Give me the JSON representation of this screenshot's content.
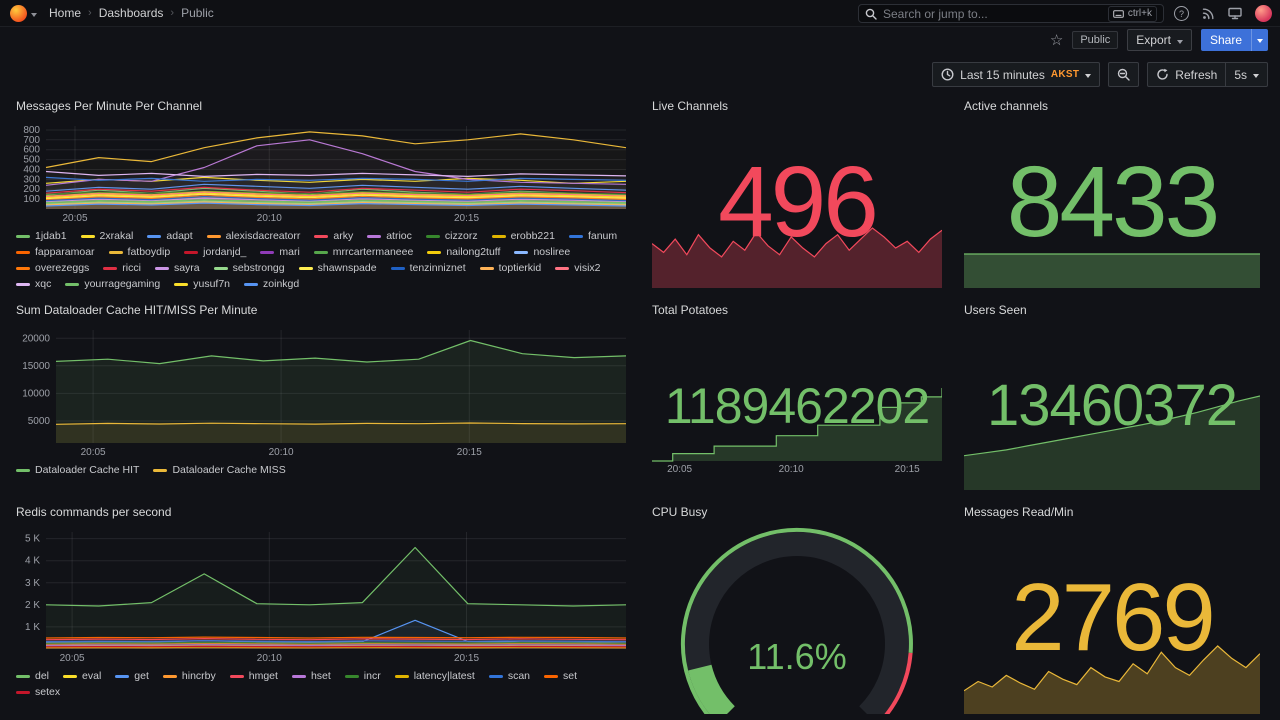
{
  "topnav": {
    "breadcrumbs": [
      "Home",
      "Dashboards",
      "Public"
    ],
    "search_placeholder": "Search or jump to...",
    "search_shortcut": "ctrl+k"
  },
  "subnav": {
    "tag": "Public",
    "export_label": "Export",
    "share_label": "Share"
  },
  "toolbar": {
    "time_range": "Last 15 minutes",
    "timezone": "AKST",
    "refresh_label": "Refresh",
    "interval": "5s"
  },
  "panels": {
    "messages": {
      "title": "Messages Per Minute Per Channel"
    },
    "live_channels": {
      "title": "Live Channels",
      "value": "496"
    },
    "active_channels": {
      "title": "Active channels",
      "value": "8433"
    },
    "dataloader": {
      "title": "Sum Dataloader Cache HIT/MISS Per Minute"
    },
    "total_potatoes": {
      "title": "Total Potatoes",
      "value": "1189462202"
    },
    "users_seen": {
      "title": "Users Seen",
      "value": "13460372"
    },
    "redis": {
      "title": "Redis commands per second"
    },
    "cpu": {
      "title": "CPU Busy"
    },
    "messages_read": {
      "title": "Messages Read/Min",
      "value": "2769"
    }
  },
  "chart_data": {
    "messages": {
      "type": "line",
      "ml": 30,
      "fo": 0.03,
      "ylim": [
        0,
        840
      ],
      "yticks": [
        {
          "v": 800,
          "label": "800"
        },
        {
          "v": 700,
          "label": "700"
        },
        {
          "v": 600,
          "label": "600"
        },
        {
          "v": 500,
          "label": "500"
        },
        {
          "v": 400,
          "label": "400"
        },
        {
          "v": 300,
          "label": "300"
        },
        {
          "v": 200,
          "label": "200"
        },
        {
          "v": 100,
          "label": "100"
        }
      ],
      "xticks": [
        {
          "p": 0.05,
          "label": "20:05"
        },
        {
          "p": 0.385,
          "label": "20:10"
        },
        {
          "p": 0.725,
          "label": "20:15"
        }
      ],
      "series": [
        {
          "name": "1jdab1",
          "color": "#73BF69",
          "values": [
            140,
            190,
            160,
            210,
            180,
            150,
            200,
            170,
            150,
            180,
            160,
            140
          ]
        },
        {
          "name": "2xrakal",
          "color": "#FADE2A",
          "values": [
            260,
            300,
            280,
            320,
            290,
            270,
            300,
            280,
            310,
            290,
            260,
            280
          ]
        },
        {
          "name": "adapt",
          "color": "#5794F2",
          "values": [
            180,
            220,
            200,
            250,
            230,
            210,
            240,
            220,
            200,
            230,
            210,
            190
          ]
        },
        {
          "name": "alexisdacreatorr",
          "color": "#FF9830",
          "values": [
            90,
            130,
            110,
            150,
            120,
            100,
            140,
            120,
            110,
            130,
            120,
            100
          ]
        },
        {
          "name": "arky",
          "color": "#F2495C",
          "values": [
            60,
            90,
            75,
            100,
            85,
            70,
            95,
            80,
            70,
            90,
            80,
            65
          ]
        },
        {
          "name": "atrioc",
          "color": "#B877D9",
          "values": [
            240,
            300,
            280,
            420,
            640,
            700,
            560,
            380,
            300,
            270,
            260,
            250
          ]
        },
        {
          "name": "cizzorz",
          "color": "#37872D",
          "values": [
            150,
            170,
            160,
            180,
            165,
            155,
            175,
            160,
            150,
            170,
            160,
            150
          ]
        },
        {
          "name": "erobb221",
          "color": "#E0B400",
          "values": [
            80,
            110,
            95,
            120,
            105,
            90,
            115,
            100,
            90,
            110,
            100,
            85
          ]
        },
        {
          "name": "fanum",
          "color": "#3274D9",
          "values": [
            320,
            290,
            310,
            280,
            300,
            290,
            310,
            300,
            280,
            310,
            300,
            290
          ]
        },
        {
          "name": "fapparamoar",
          "color": "#FA6400",
          "values": [
            45,
            65,
            55,
            75,
            60,
            50,
            70,
            60,
            50,
            65,
            55,
            45
          ]
        },
        {
          "name": "fatboydip",
          "color": "#EAB839",
          "values": [
            420,
            520,
            480,
            620,
            720,
            780,
            740,
            660,
            700,
            760,
            700,
            620
          ]
        },
        {
          "name": "jordanjd_",
          "color": "#C4162A",
          "values": [
            110,
            150,
            130,
            170,
            140,
            120,
            160,
            140,
            130,
            150,
            140,
            120
          ]
        },
        {
          "name": "mari",
          "color": "#8F3BB8",
          "values": [
            70,
            95,
            85,
            105,
            90,
            80,
            100,
            90,
            80,
            95,
            85,
            75
          ]
        },
        {
          "name": "mrrcartermaneee",
          "color": "#56A64B",
          "values": [
            55,
            75,
            65,
            85,
            70,
            60,
            80,
            70,
            60,
            75,
            65,
            55
          ]
        },
        {
          "name": "nailong2tuff",
          "color": "#F2CC0C",
          "values": [
            130,
            160,
            145,
            175,
            155,
            140,
            165,
            150,
            140,
            160,
            150,
            135
          ]
        },
        {
          "name": "nosliree",
          "color": "#8AB8FF",
          "values": [
            35,
            55,
            45,
            65,
            50,
            40,
            60,
            50,
            40,
            55,
            45,
            35
          ]
        },
        {
          "name": "overezeggs",
          "color": "#FF780A",
          "values": [
            95,
            120,
            105,
            135,
            115,
            100,
            125,
            110,
            100,
            120,
            110,
            95
          ]
        },
        {
          "name": "ricci",
          "color": "#E02F44",
          "values": [
            160,
            200,
            180,
            220,
            190,
            170,
            210,
            190,
            170,
            200,
            185,
            165
          ]
        },
        {
          "name": "sayra",
          "color": "#CA95E5",
          "values": [
            75,
            100,
            85,
            110,
            95,
            80,
            105,
            90,
            80,
            100,
            90,
            75
          ]
        },
        {
          "name": "sebstrongg",
          "color": "#96D98D",
          "values": [
            50,
            70,
            60,
            80,
            65,
            55,
            75,
            65,
            55,
            70,
            60,
            50
          ]
        },
        {
          "name": "shawnspade",
          "color": "#FFEE52",
          "values": [
            105,
            135,
            120,
            150,
            130,
            115,
            140,
            125,
            115,
            135,
            125,
            110
          ]
        },
        {
          "name": "tenzinniznet",
          "color": "#1F60C4",
          "values": [
            85,
            110,
            95,
            125,
            105,
            90,
            115,
            100,
            90,
            110,
            100,
            85
          ]
        },
        {
          "name": "toptierkid",
          "color": "#FFB357",
          "values": [
            40,
            60,
            50,
            70,
            55,
            45,
            65,
            55,
            45,
            60,
            50,
            40
          ]
        },
        {
          "name": "visix2",
          "color": "#FF7383",
          "values": [
            125,
            155,
            140,
            170,
            150,
            135,
            160,
            145,
            135,
            155,
            145,
            130
          ]
        },
        {
          "name": "xqc",
          "color": "#DEB6F2",
          "values": [
            380,
            340,
            360,
            330,
            350,
            340,
            360,
            345,
            330,
            355,
            345,
            335
          ]
        },
        {
          "name": "yourragegaming",
          "color": "#73BF69",
          "values": [
            65,
            85,
            75,
            95,
            80,
            70,
            90,
            78,
            68,
            85,
            75,
            65
          ]
        },
        {
          "name": "yusuf7n",
          "color": "#FADE2A",
          "values": [
            115,
            145,
            130,
            160,
            140,
            125,
            150,
            135,
            125,
            145,
            135,
            120
          ]
        },
        {
          "name": "zoinkgd",
          "color": "#5794F2",
          "values": [
            30,
            50,
            40,
            60,
            45,
            35,
            55,
            45,
            35,
            50,
            40,
            30
          ]
        }
      ]
    },
    "dataloader": {
      "type": "line",
      "ml": 40,
      "fo": 0.1,
      "ylim": [
        1000,
        21500
      ],
      "yticks": [
        {
          "v": 20000,
          "label": "20000"
        },
        {
          "v": 15000,
          "label": "15000"
        },
        {
          "v": 10000,
          "label": "10000"
        },
        {
          "v": 5000,
          "label": "5000"
        }
      ],
      "xticks": [
        {
          "p": 0.065,
          "label": "20:05"
        },
        {
          "p": 0.395,
          "label": "20:10"
        },
        {
          "p": 0.725,
          "label": "20:15"
        }
      ],
      "series": [
        {
          "name": "Dataloader Cache HIT",
          "color": "#73BF69",
          "values": [
            15800,
            16200,
            15400,
            16800,
            15900,
            16400,
            15700,
            16200,
            19600,
            17200,
            16500,
            16800
          ]
        },
        {
          "name": "Dataloader Cache MISS",
          "color": "#EAB839",
          "values": [
            4400,
            4550,
            4450,
            4600,
            4500,
            4420,
            4560,
            4500,
            4620,
            4520,
            4460,
            4510
          ]
        }
      ]
    },
    "redis": {
      "type": "line",
      "ml": 30,
      "fo": 0.07,
      "ylim": [
        0,
        5300
      ],
      "yticks": [
        {
          "v": 5000,
          "label": "5 K"
        },
        {
          "v": 4000,
          "label": "4 K"
        },
        {
          "v": 3000,
          "label": "3 K"
        },
        {
          "v": 2000,
          "label": "2 K"
        },
        {
          "v": 1000,
          "label": "1 K"
        }
      ],
      "xticks": [
        {
          "p": 0.045,
          "label": "20:05"
        },
        {
          "p": 0.385,
          "label": "20:10"
        },
        {
          "p": 0.725,
          "label": "20:15"
        }
      ],
      "series": [
        {
          "name": "del",
          "color": "#73BF69",
          "values": [
            2000,
            1950,
            2100,
            3400,
            2050,
            2000,
            2100,
            4600,
            2050,
            2000,
            1950,
            2000
          ]
        },
        {
          "name": "eval",
          "color": "#FADE2A",
          "values": [
            150,
            160,
            140,
            170,
            150,
            160,
            150,
            170,
            160,
            150,
            140,
            150
          ]
        },
        {
          "name": "get",
          "color": "#5794F2",
          "values": [
            300,
            320,
            310,
            380,
            320,
            300,
            330,
            1300,
            340,
            310,
            300,
            320
          ]
        },
        {
          "name": "hincrby",
          "color": "#FF9830",
          "values": [
            220,
            240,
            230,
            260,
            240,
            220,
            250,
            240,
            230,
            250,
            240,
            220
          ]
        },
        {
          "name": "hmget",
          "color": "#F2495C",
          "values": [
            420,
            450,
            430,
            470,
            440,
            420,
            460,
            450,
            430,
            460,
            440,
            420
          ]
        },
        {
          "name": "hset",
          "color": "#B877D9",
          "values": [
            160,
            180,
            170,
            200,
            180,
            160,
            190,
            180,
            170,
            190,
            180,
            160
          ]
        },
        {
          "name": "incr",
          "color": "#37872D",
          "values": [
            260,
            280,
            270,
            300,
            280,
            260,
            290,
            280,
            270,
            290,
            280,
            260
          ]
        },
        {
          "name": "latency|latest",
          "color": "#E0B400",
          "values": [
            60,
            70,
            65,
            80,
            70,
            60,
            75,
            70,
            65,
            75,
            70,
            60
          ]
        },
        {
          "name": "scan",
          "color": "#3274D9",
          "values": [
            340,
            360,
            350,
            380,
            360,
            340,
            370,
            360,
            350,
            370,
            360,
            340
          ]
        },
        {
          "name": "set",
          "color": "#FA6400",
          "values": [
            500,
            520,
            510,
            540,
            520,
            500,
            530,
            520,
            510,
            530,
            520,
            500
          ]
        },
        {
          "name": "setex",
          "color": "#C4162A",
          "values": [
            100,
            110,
            105,
            120,
            110,
            100,
            115,
            110,
            105,
            115,
            110,
            100
          ]
        }
      ]
    },
    "live_channels": {
      "type": "spark",
      "color": "#F2495C",
      "h": 62,
      "fo": 0.3,
      "vmin": 0,
      "values": [
        40,
        32,
        44,
        30,
        48,
        36,
        28,
        42,
        34,
        50,
        38,
        30,
        46,
        36,
        28,
        40,
        48,
        34,
        44,
        54,
        46,
        36,
        42,
        32,
        44,
        52
      ]
    },
    "active_channels": {
      "type": "spark",
      "color": "#73BF69",
      "h": 36,
      "fo": 0.35,
      "vmin": 0,
      "values": [
        8433,
        8433,
        8433,
        8433,
        8433,
        8433,
        8433,
        8433
      ]
    },
    "total_potatoes": {
      "type": "spark",
      "color": "#73BF69",
      "h": 88,
      "pb": 16,
      "fo": 0.22,
      "step": true,
      "values": [
        50,
        55,
        55,
        60,
        60,
        60,
        67,
        67,
        74,
        74,
        74,
        86,
        89,
        93,
        99
      ],
      "xticks": [
        {
          "p": 0.095,
          "label": "20:05"
        },
        {
          "p": 0.48,
          "label": "20:10"
        },
        {
          "p": 0.88,
          "label": "20:15"
        }
      ]
    },
    "users_seen": {
      "type": "spark",
      "color": "#73BF69",
      "h": 96,
      "fo": 0.22,
      "vmin": 0,
      "values": [
        35,
        38,
        41,
        45,
        49,
        53,
        57,
        61,
        65,
        69,
        74,
        79,
        85,
        91,
        96
      ]
    },
    "messages_read": {
      "type": "spark",
      "color": "#EAB839",
      "h": 70,
      "fo": 0.28,
      "vmin": 0,
      "values": [
        30,
        42,
        35,
        50,
        40,
        32,
        55,
        45,
        38,
        60,
        48,
        42,
        65,
        52,
        80,
        60,
        50,
        70,
        88,
        72,
        60,
        78
      ]
    },
    "cpu": {
      "type": "gauge",
      "min": 0,
      "max": 100,
      "value": 11.6,
      "display": "11.6%",
      "color": "#73BF69",
      "threshold_red_from": 0.85
    }
  }
}
